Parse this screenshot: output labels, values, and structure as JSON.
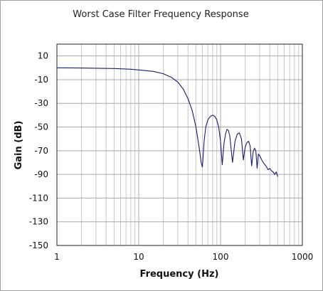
{
  "chart_data": {
    "type": "line",
    "title": "Worst Case Filter Frequency Response",
    "xlabel": "Frequency (Hz)",
    "ylabel": "Gain (dB)",
    "x_scale": "log",
    "xlim": [
      1,
      1000
    ],
    "ylim": [
      -150,
      20
    ],
    "x_ticks": [
      1,
      10,
      100,
      1000
    ],
    "x_tick_labels": [
      "1",
      "10",
      "100",
      "1000"
    ],
    "y_ticks": [
      10,
      -10,
      -30,
      -50,
      -70,
      -90,
      -110,
      -130,
      -150
    ],
    "y_tick_labels": [
      "10",
      "-10",
      "-30",
      "-50",
      "-70",
      "-90",
      "-110",
      "-130",
      "-150"
    ],
    "grid": true,
    "legend": "none",
    "series": [
      {
        "color": "#1a1a6e",
        "x": [
          1,
          2,
          5,
          8,
          10,
          15,
          20,
          25,
          30,
          35,
          40,
          45,
          50,
          55,
          58,
          60,
          63,
          66,
          70,
          75,
          80,
          85,
          90,
          95,
          100,
          105,
          110,
          115,
          120,
          125,
          130,
          140,
          150,
          160,
          170,
          180,
          190,
          200,
          210,
          220,
          230,
          240,
          250,
          260,
          270,
          280,
          290,
          300,
          320,
          340,
          360,
          380,
          400,
          420,
          440,
          460,
          480,
          500
        ],
        "y": [
          0,
          -0.2,
          -0.6,
          -1.2,
          -1.8,
          -3,
          -5,
          -8,
          -12,
          -18,
          -26,
          -36,
          -50,
          -68,
          -80,
          -84,
          -62,
          -50,
          -44,
          -41,
          -40,
          -41,
          -44,
          -50,
          -62,
          -82,
          -64,
          -56,
          -52,
          -53,
          -58,
          -80,
          -62,
          -56,
          -55,
          -60,
          -78,
          -67,
          -63,
          -62,
          -66,
          -83,
          -71,
          -68,
          -70,
          -85,
          -73,
          -74,
          -78,
          -81,
          -83,
          -86,
          -85,
          -87,
          -88,
          -90,
          -88,
          -92
        ]
      }
    ]
  }
}
